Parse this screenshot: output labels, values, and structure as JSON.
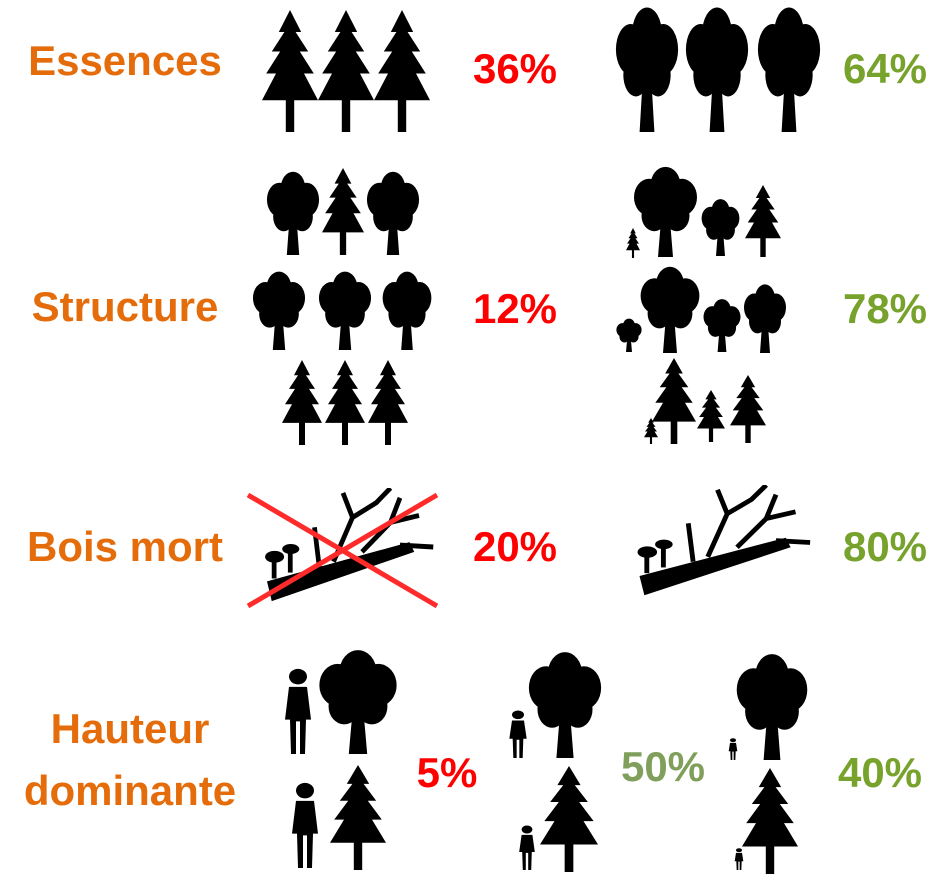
{
  "rows": [
    {
      "label": "Essences",
      "values": [
        "36%",
        "64%"
      ]
    },
    {
      "label": "Structure",
      "values": [
        "12%",
        "78%"
      ]
    },
    {
      "label": "Bois mort",
      "values": [
        "20%",
        "80%"
      ]
    },
    {
      "label": [
        "Hauteur",
        "dominante"
      ],
      "values": [
        "5%",
        "50%",
        "40%"
      ]
    }
  ]
}
